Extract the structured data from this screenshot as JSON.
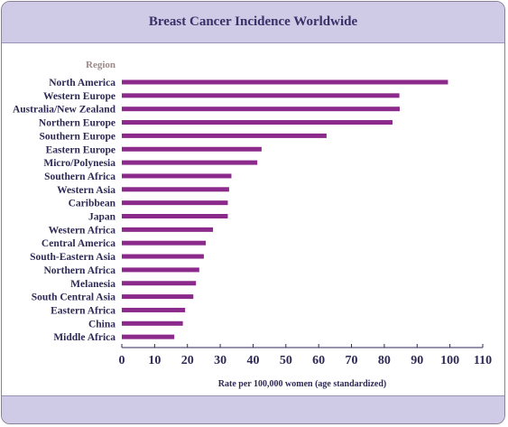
{
  "chart_data": {
    "type": "bar",
    "orientation": "horizontal",
    "title": "Breast Cancer Incidence Worldwide",
    "ylabel": "Region",
    "xlabel": "Rate per 100,000 women (age standardized)",
    "xlim": [
      0,
      110
    ],
    "xticks": [
      0,
      10,
      20,
      30,
      40,
      50,
      60,
      70,
      80,
      90,
      100,
      110
    ],
    "grid": false,
    "bar_color": "#8b2a8b",
    "categories": [
      "North America",
      "Western Europe",
      "Australia/New Zealand",
      "Northern Europe",
      "Southern Europe",
      "Eastern Europe",
      "Micro/Polynesia",
      "Southern Africa",
      "Western Asia",
      "Caribbean",
      "Japan",
      "Western Africa",
      "Central America",
      "South-Eastern Asia",
      "Northern Africa",
      "Melanesia",
      "South Central Asia",
      "Eastern Africa",
      "China",
      "Middle Africa"
    ],
    "values": [
      99.4,
      84.6,
      84.7,
      82.5,
      62.4,
      42.6,
      41.3,
      33.4,
      32.7,
      32.3,
      32.3,
      27.8,
      25.6,
      25.0,
      23.6,
      22.6,
      21.8,
      19.3,
      18.6,
      16.0
    ]
  }
}
